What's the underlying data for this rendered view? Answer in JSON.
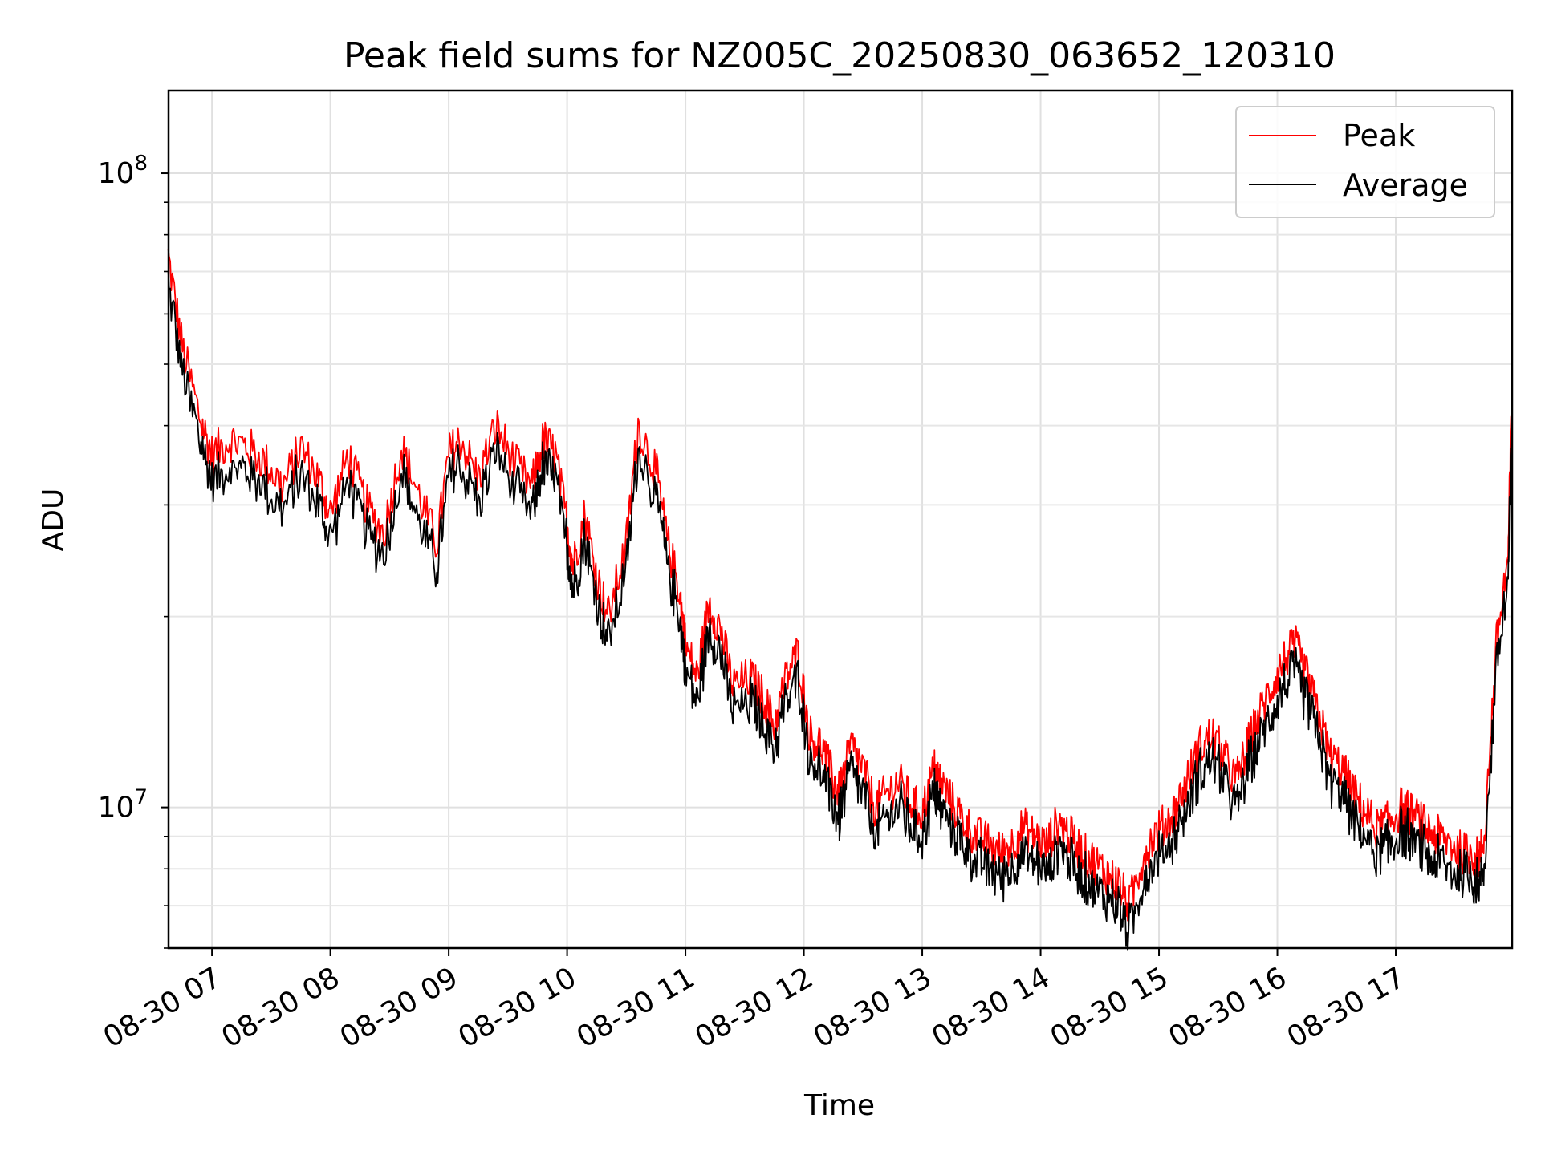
{
  "chart_data": {
    "type": "line",
    "title": "Peak field sums for NZ005C_20250830_063652_120310",
    "xlabel": "Time",
    "ylabel": "ADU",
    "yscale": "log",
    "ylim": [
      6000000,
      135000000
    ],
    "xlim": [
      "08-30 06:38",
      "08-30 17:59"
    ],
    "grid": true,
    "legend_position": "top-right",
    "x_ticks": [
      "08-30 07",
      "08-30 08",
      "08-30 09",
      "08-30 10",
      "08-30 11",
      "08-30 12",
      "08-30 13",
      "08-30 14",
      "08-30 15",
      "08-30 16",
      "08-30 17"
    ],
    "y_ticks": [
      {
        "value": 10000000,
        "base": "10",
        "exp": "7"
      },
      {
        "value": 100000000,
        "base": "10",
        "exp": "8"
      }
    ],
    "x_hours": [
      6.63,
      6.75,
      6.9,
      7.0,
      7.15,
      7.3,
      7.45,
      7.6,
      7.75,
      7.9,
      8.0,
      8.15,
      8.3,
      8.45,
      8.6,
      8.75,
      8.9,
      9.0,
      9.1,
      9.25,
      9.4,
      9.55,
      9.7,
      9.8,
      9.9,
      10.0,
      10.05,
      10.15,
      10.25,
      10.35,
      10.5,
      10.6,
      10.75,
      10.85,
      10.95,
      11.0,
      11.1,
      11.2,
      11.3,
      11.4,
      11.55,
      11.65,
      11.75,
      11.85,
      11.95,
      12.05,
      12.15,
      12.25,
      12.3,
      12.4,
      12.5,
      12.6,
      12.7,
      12.8,
      12.9,
      13.0,
      13.1,
      13.15,
      13.25,
      13.35,
      13.45,
      13.55,
      13.65,
      13.75,
      13.85,
      13.95,
      14.05,
      14.15,
      14.25,
      14.35,
      14.45,
      14.55,
      14.65,
      14.75,
      14.85,
      14.95,
      15.05,
      15.15,
      15.25,
      15.35,
      15.45,
      15.55,
      15.65,
      15.75,
      15.85,
      15.95,
      16.05,
      16.15,
      16.25,
      16.35,
      16.45,
      16.55,
      16.65,
      16.75,
      16.85,
      16.95,
      17.05,
      17.15,
      17.25,
      17.35,
      17.45,
      17.55,
      17.65,
      17.7,
      17.75,
      17.85,
      17.95,
      17.98
    ],
    "series": [
      {
        "name": "Peak",
        "color": "#ff0000",
        "values": [
          74000000,
          53000000,
          41000000,
          36000000,
          38000000,
          37000000,
          35000000,
          32000000,
          37000000,
          33000000,
          29000000,
          36000000,
          30000000,
          27000000,
          37000000,
          31000000,
          26000000,
          36000000,
          38000000,
          33000000,
          40000000,
          35000000,
          32000000,
          38000000,
          36000000,
          28000000,
          24000000,
          29000000,
          23000000,
          20000000,
          26000000,
          40000000,
          34000000,
          26000000,
          22000000,
          18000000,
          16000000,
          21000000,
          19000000,
          15500000,
          16000000,
          15000000,
          13500000,
          16000000,
          17500000,
          13000000,
          12500000,
          11000000,
          10500000,
          12500000,
          11500000,
          10000000,
          10500000,
          11000000,
          10200000,
          9800000,
          11500000,
          11000000,
          10200000,
          9500000,
          9000000,
          8800000,
          8500000,
          8700000,
          9300000,
          9000000,
          8700000,
          9500000,
          9000000,
          8500000,
          8200000,
          7900000,
          7600000,
          7000000,
          8200000,
          9000000,
          9400000,
          10000000,
          11200000,
          12500000,
          13000000,
          12000000,
          11000000,
          12500000,
          14000000,
          15500000,
          17000000,
          18000000,
          16000000,
          14000000,
          12000000,
          11500000,
          10500000,
          9800000,
          9200000,
          9500000,
          10000000,
          9700000,
          9300000,
          9000000,
          8800000,
          8500000,
          8400000,
          8300000,
          9000000,
          18000000,
          25000000,
          45000000
        ],
        "note_values_order": "aligned with x_hours"
      },
      {
        "name": "Average",
        "color": "#000000"
      }
    ]
  }
}
